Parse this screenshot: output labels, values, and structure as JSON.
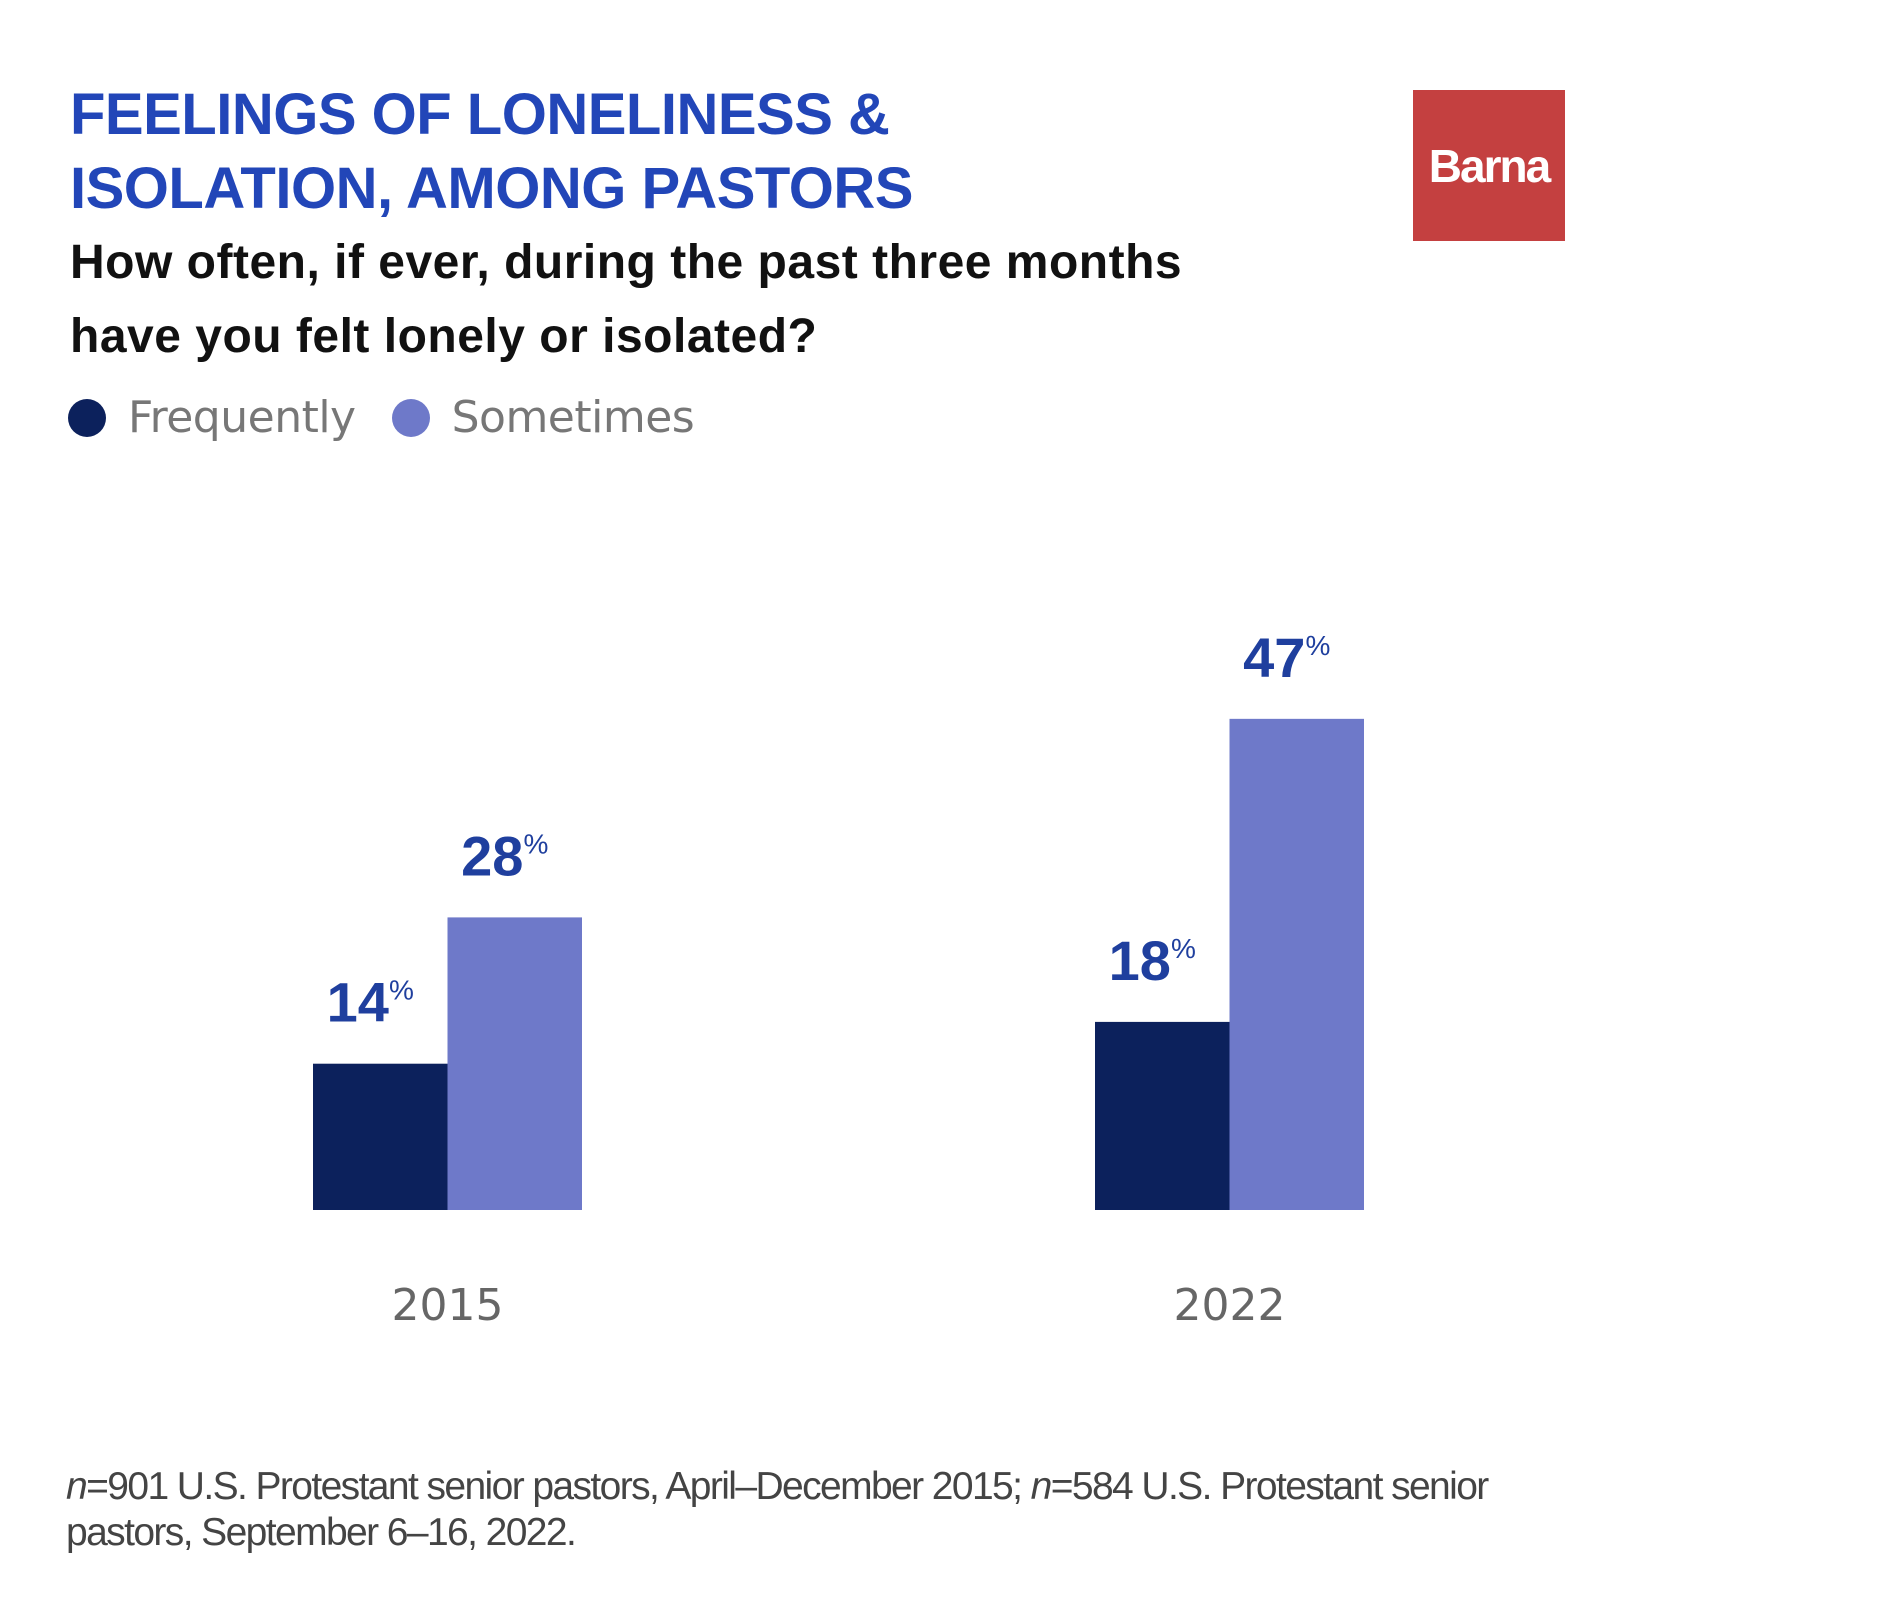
{
  "title_lines": [
    "FEELINGS OF LONELINESS &",
    "ISOLATION, AMONG PASTORS"
  ],
  "subtitle_lines": [
    "How often, if ever, during the past three months",
    "have you felt lonely or isolated?"
  ],
  "logo_text": "Barna",
  "colors": {
    "title": "#2246b8",
    "frequently": "#0c215c",
    "sometimes": "#6e79c9",
    "logo": "#c44040",
    "labels": "#1f3f9e"
  },
  "chart_data": {
    "type": "bar",
    "categories": [
      "2015",
      "2022"
    ],
    "series": [
      {
        "name": "Frequently",
        "values": [
          14,
          18
        ]
      },
      {
        "name": "Sometimes",
        "values": [
          28,
          47
        ]
      }
    ],
    "unit": "%",
    "legend": "top-left",
    "grid": false
  },
  "footnote": {
    "n1": "n",
    "part1": "=901 U.S. Protestant senior pastors, April–December 2015; ",
    "n2": "n",
    "part2": "=584 U.S. Protestant senior pastors, September 6–16, 2022."
  }
}
